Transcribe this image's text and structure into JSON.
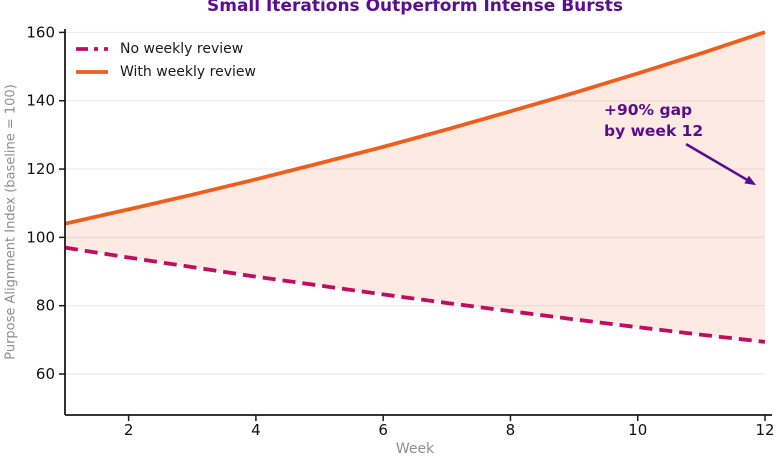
{
  "chart_data": {
    "type": "line",
    "title": "Small Iterations Outperform Intense Bursts",
    "xlabel": "Week",
    "ylabel": "Purpose Alignment Index (baseline = 100)",
    "x": [
      1,
      2,
      3,
      4,
      5,
      6,
      7,
      8,
      9,
      10,
      11,
      12
    ],
    "series": [
      {
        "name": "No weekly review",
        "style": "dashed",
        "color_key": "no_review",
        "values": [
          97.0,
          94.1,
          91.3,
          88.5,
          85.9,
          83.3,
          80.8,
          78.4,
          76.0,
          73.7,
          71.5,
          69.4
        ]
      },
      {
        "name": "With weekly review",
        "style": "solid",
        "color_key": "with_review",
        "values": [
          104.0,
          108.2,
          112.5,
          117.0,
          121.7,
          126.5,
          131.6,
          136.9,
          142.3,
          148.0,
          153.9,
          160.1
        ]
      }
    ],
    "fill_between_series": true,
    "xticks": [
      2,
      4,
      6,
      8,
      10,
      12
    ],
    "yticks": [
      60,
      80,
      100,
      120,
      140,
      160
    ],
    "xlim": [
      1,
      12
    ],
    "ylim": [
      48,
      161
    ],
    "grid": "horizontal",
    "legend_position": "top-left",
    "annotation": {
      "text": "+90% gap\nby week 12",
      "arrow_from_xy": [
        10.76,
        127.3
      ],
      "arrow_to_xy": [
        11.86,
        115.3
      ]
    }
  },
  "colors": {
    "no_review": "#c00d60",
    "with_review": "#ee5f1e",
    "fill": "rgba(238,95,30,0.13)",
    "title": "#5a0d8e",
    "annotation": "#5a0d8e",
    "axis_label": "#8e8e8e",
    "tick_label": "#111111",
    "grid": "#ececec",
    "spine": "#1a1a1a"
  }
}
